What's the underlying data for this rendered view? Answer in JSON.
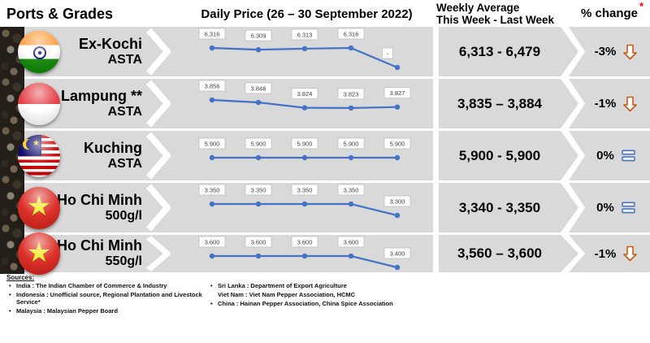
{
  "header": {
    "ports_grades": "Ports & Grades",
    "daily_price_title": "Daily Price (26 – 30 September 2022)",
    "weekly_avg_line1": "Weekly Average",
    "weekly_avg_line2": "This Week - Last Week",
    "pct_change": "% change",
    "footnote_mark": "*"
  },
  "rows": [
    {
      "port": "Ex-Kochi",
      "grade": "ASTA",
      "flag": "india",
      "labels": [
        "6.316",
        "6.309",
        "6.313",
        "6.316",
        "-"
      ],
      "values": [
        6316,
        6309,
        6313,
        6316,
        null
      ],
      "weekly": "6,313 - 6,479",
      "pct": "-3%",
      "trend": "down"
    },
    {
      "port": "Lampung **",
      "grade": "ASTA",
      "flag": "indonesia",
      "labels": [
        "3.856",
        "3.846",
        "3.824",
        "3.823",
        "3.827"
      ],
      "values": [
        3856,
        3846,
        3824,
        3823,
        3827
      ],
      "weekly": "3,835 – 3,884",
      "pct": "-1%",
      "trend": "down"
    },
    {
      "port": "Kuching",
      "grade": "ASTA",
      "flag": "malaysia",
      "labels": [
        "5.900",
        "5.900",
        "5.900",
        "5.900",
        "5.900"
      ],
      "values": [
        5900,
        5900,
        5900,
        5900,
        5900
      ],
      "weekly": "5,900 - 5,900",
      "pct": "0%",
      "trend": "equal"
    },
    {
      "port": "Ho Chi Minh",
      "grade": "500g/l",
      "flag": "vietnam",
      "labels": [
        "3.350",
        "3.350",
        "3.350",
        "3.350",
        "3.300"
      ],
      "values": [
        3350,
        3350,
        3350,
        3350,
        3300
      ],
      "weekly": "3,340 - 3,350",
      "pct": "0%",
      "trend": "equal"
    },
    {
      "port": "Ho Chi Minh",
      "grade": "550g/l",
      "flag": "vietnam",
      "labels": [
        "3.600",
        "3.600",
        "3.600",
        "3.600",
        "3.400"
      ],
      "values": [
        3600,
        3600,
        3600,
        3600,
        3400
      ],
      "weekly": "3,560 – 3,600",
      "pct": "-1%",
      "trend": "down"
    }
  ],
  "chart_data": {
    "type": "line",
    "title": "Daily Price (26 – 30 September 2022)",
    "points_per_series": 5,
    "legend": false,
    "grid": false,
    "series": [
      {
        "name": "Ex-Kochi ASTA",
        "values": [
          6316,
          6309,
          6313,
          6316,
          null
        ],
        "weekly_avg": {
          "this_week": 6313,
          "last_week": 6479
        },
        "pct_change": "-3%"
      },
      {
        "name": "Lampung ** ASTA",
        "values": [
          3856,
          3846,
          3824,
          3823,
          3827
        ],
        "weekly_avg": {
          "this_week": 3835,
          "last_week": 3884
        },
        "pct_change": "-1%"
      },
      {
        "name": "Kuching ASTA",
        "values": [
          5900,
          5900,
          5900,
          5900,
          5900
        ],
        "weekly_avg": {
          "this_week": 5900,
          "last_week": 5900
        },
        "pct_change": "0%"
      },
      {
        "name": "Ho Chi Minh 500g/l",
        "values": [
          3350,
          3350,
          3350,
          3350,
          3300
        ],
        "weekly_avg": {
          "this_week": 3340,
          "last_week": 3350
        },
        "pct_change": "0%"
      },
      {
        "name": "Ho Chi Minh 550g/l",
        "values": [
          3600,
          3600,
          3600,
          3600,
          3400
        ],
        "weekly_avg": {
          "this_week": 3560,
          "last_week": 3600
        },
        "pct_change": "-1%"
      }
    ]
  },
  "sources": {
    "title": "Sources:",
    "left": [
      "India : The Indian Chamber of Commerce & Industry",
      "Indonesia : Unofficial source, Regional Plantation and Livestock Service*",
      "Malaysia : Malaysian Pepper Board"
    ],
    "right": [
      "Sri Lanka : Department of Export Agriculture",
      "Viet Nam : Viet Nam Pepper Association, HCMC",
      "China : Hainan Pepper Association, China Spice Association"
    ]
  },
  "colors": {
    "band_gray": "#D9D9D9",
    "line_blue": "#4472C4",
    "label_border": "#BFBFBF",
    "label_text": "#3F3F3F",
    "down_arrow_orange": "#C55A11",
    "equal_blue": "#4472C4",
    "footnote_red": "#FF0000"
  }
}
